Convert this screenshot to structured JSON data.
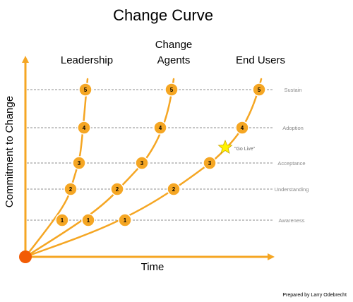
{
  "title": "Change Curve",
  "columns": [
    {
      "label_lines": [
        "Leadership"
      ]
    },
    {
      "label_lines": [
        "Change",
        "Agents"
      ]
    },
    {
      "label_lines": [
        "End Users"
      ]
    }
  ],
  "axes": {
    "x_label": "Time",
    "y_label": "Commitment to Change"
  },
  "stages": [
    "Sustain",
    "Adoption",
    "Acceptance",
    "Understanding",
    "Awareness"
  ],
  "node_numbers": [
    "1",
    "2",
    "3",
    "4",
    "5"
  ],
  "milestone": {
    "label": "\"Go Live\""
  },
  "credit": "Prepared by Larry Odebrecht",
  "colors": {
    "accent": "#F5A623",
    "node_fill": "#F5A623",
    "node_stroke": "#FFFFFF",
    "origin": "#F25C05",
    "star": "#FFF200",
    "dashed_line": "#8c8c8c"
  }
}
